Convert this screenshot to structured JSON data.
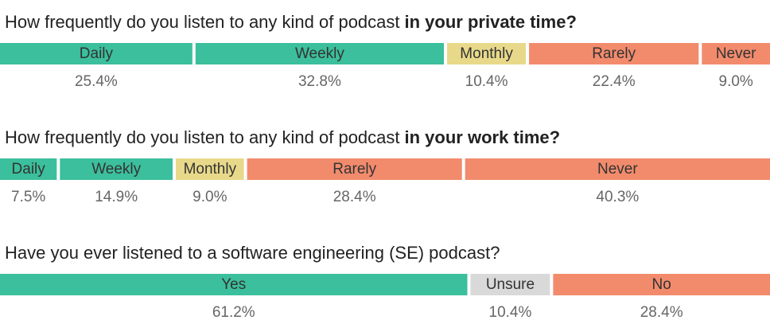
{
  "chart_data": [
    {
      "type": "stacked-bar",
      "title": "How frequently do you listen to any kind of podcast",
      "title_bold": "in your private time?",
      "categories": [
        "Daily",
        "Weekly",
        "Monthly",
        "Rarely",
        "Never"
      ],
      "values": [
        25.4,
        32.8,
        10.4,
        22.4,
        9.0
      ],
      "value_labels": [
        "25.4%",
        "32.8%",
        "10.4%",
        "22.4%",
        "9.0%"
      ],
      "colors": [
        "#3bbf9c",
        "#3bbf9c",
        "#e8d98a",
        "#f28b6c",
        "#f28b6c"
      ]
    },
    {
      "type": "stacked-bar",
      "title": "How frequently do you listen to any kind of podcast",
      "title_bold": "in your work time?",
      "categories": [
        "Daily",
        "Weekly",
        "Monthly",
        "Rarely",
        "Never"
      ],
      "values": [
        7.5,
        14.9,
        9.0,
        28.4,
        40.3
      ],
      "value_labels": [
        "7.5%",
        "14.9%",
        "9.0%",
        "28.4%",
        "40.3%"
      ],
      "colors": [
        "#3bbf9c",
        "#3bbf9c",
        "#e8d98a",
        "#f28b6c",
        "#f28b6c"
      ]
    },
    {
      "type": "stacked-bar",
      "title": "Have you ever listened to a software engineering (SE) podcast?",
      "categories": [
        "Yes",
        "Unsure",
        "No"
      ],
      "values": [
        61.2,
        10.4,
        28.4
      ],
      "value_labels": [
        "61.2%",
        "10.4%",
        "28.4%"
      ],
      "colors": [
        "#3bbf9c",
        "#d9d9d9",
        "#f28b6c"
      ]
    }
  ]
}
